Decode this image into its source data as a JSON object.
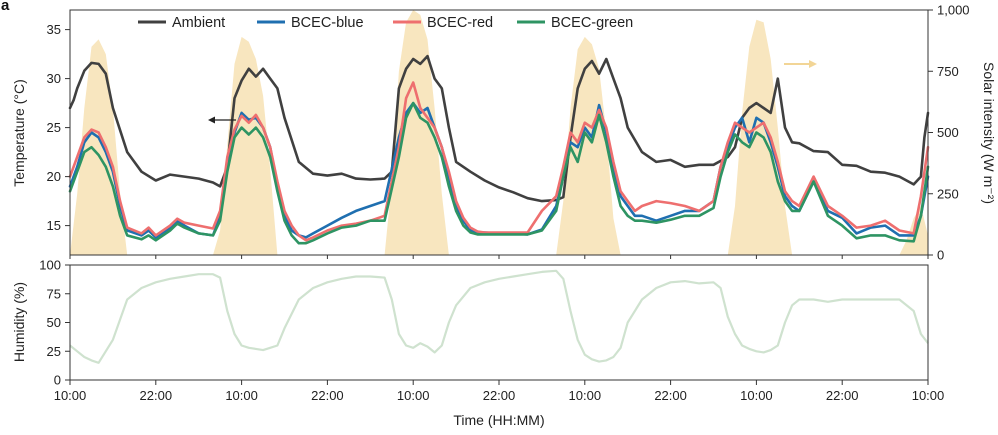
{
  "chart_data": [
    {
      "panel_label": "a",
      "type": "line",
      "xlabel": "Time (HH:MM)",
      "ylabel": "Temperature (°C)",
      "y2label": "Solar intensity (W m⁻²)",
      "x_range_hours": [
        0,
        120
      ],
      "ylim": [
        12,
        37
      ],
      "y2lim": [
        0,
        1000
      ],
      "yticks": [
        "15",
        "20",
        "25",
        "30",
        "35"
      ],
      "y2ticks": [
        "0",
        "250",
        "500",
        "750",
        "1,000"
      ],
      "legend": [
        "Ambient",
        "BCEC-blue",
        "BCEC-red",
        "BCEC-green"
      ],
      "colors": {
        "Ambient": "#404040",
        "BCEC-blue": "#1f6fb0",
        "BCEC-red": "#ee6f6f",
        "BCEC-green": "#2e9463",
        "Solar": "#f8e6bf",
        "Humidity": "#cfe2cf"
      },
      "series": [
        {
          "name": "Ambient",
          "x": [
            0,
            0.5,
            1,
            2,
            3,
            4,
            5,
            6,
            8,
            10,
            12,
            14,
            16,
            18,
            20,
            21,
            22,
            23,
            24,
            25,
            26,
            27,
            28,
            29,
            30,
            32,
            34,
            36,
            38,
            40,
            42,
            44,
            45,
            46,
            47,
            48,
            49,
            50,
            51,
            52,
            53,
            54,
            56,
            58,
            60,
            62,
            64,
            66,
            68,
            69,
            70,
            71,
            72,
            73,
            74,
            75,
            76,
            77,
            78,
            80,
            82,
            84,
            86,
            88,
            90,
            92,
            93,
            94,
            95,
            96,
            97,
            98,
            99,
            100,
            101,
            102,
            104,
            106,
            108,
            110,
            112,
            114,
            116,
            118,
            119,
            119.5,
            120
          ],
          "values": [
            27,
            27.8,
            29,
            30.8,
            31.6,
            31.5,
            30.5,
            27,
            22.5,
            20.5,
            19.6,
            20.2,
            20,
            19.8,
            19.4,
            19,
            21,
            28,
            29.8,
            31,
            30.2,
            31,
            30,
            29,
            26,
            21.5,
            20.3,
            20.1,
            20.3,
            19.8,
            19.7,
            19.8,
            20.5,
            29,
            31,
            32,
            31.5,
            32.3,
            30,
            29,
            25,
            21.5,
            20.5,
            19.6,
            18.9,
            18.4,
            17.8,
            17.5,
            17.6,
            17.9,
            24,
            29,
            31,
            31.8,
            30.5,
            32,
            30,
            28,
            25,
            22.5,
            21.5,
            21.7,
            21,
            21.2,
            21.2,
            22,
            23,
            26,
            27,
            27.5,
            27,
            26.5,
            30,
            25,
            23.5,
            23.4,
            22.6,
            22.5,
            21.2,
            21.1,
            20.5,
            20.4,
            20,
            19.2,
            20,
            24,
            26.5
          ]
        },
        {
          "name": "BCEC-blue",
          "x": [
            0,
            1,
            2,
            3,
            4,
            5,
            6,
            7,
            8,
            10,
            11,
            12,
            14,
            15,
            16,
            18,
            20,
            21,
            22,
            23,
            24,
            25,
            26,
            27,
            28,
            29,
            30,
            31,
            32,
            33,
            34,
            36,
            38,
            40,
            42,
            44,
            46,
            47,
            48,
            49,
            50,
            51,
            52,
            53,
            54,
            55,
            56,
            57,
            58,
            60,
            62,
            64,
            66,
            68,
            69,
            70,
            71,
            72,
            73,
            74,
            75,
            76,
            77,
            78,
            79,
            80,
            82,
            84,
            86,
            88,
            90,
            91,
            92,
            93,
            94,
            95,
            96,
            97,
            98,
            99,
            100,
            101,
            102,
            104,
            106,
            108,
            110,
            112,
            114,
            116,
            118,
            119,
            120
          ],
          "values": [
            19,
            21,
            23.5,
            24.5,
            24,
            22.5,
            20.5,
            17,
            14.5,
            14,
            14.5,
            13.8,
            14.8,
            15.5,
            15,
            14.2,
            14,
            16,
            21,
            24.5,
            26.5,
            25.8,
            26,
            25,
            23,
            19,
            16,
            14.5,
            14,
            13.8,
            14.2,
            15,
            15.8,
            16.5,
            17,
            17.5,
            24,
            26.5,
            27.5,
            26.5,
            27,
            25,
            23,
            20,
            17,
            15.5,
            14.5,
            14.3,
            14.3,
            14.2,
            14.2,
            14.1,
            14.6,
            17,
            20,
            23.5,
            23,
            25,
            24,
            27.3,
            24.5,
            21,
            18,
            17,
            16,
            16,
            15.5,
            16,
            16.5,
            16.5,
            17.5,
            21,
            23,
            25,
            26,
            23.5,
            26,
            25.5,
            23.5,
            21,
            18,
            17,
            16.5,
            19.5,
            16.5,
            15.8,
            14.2,
            14.8,
            15,
            14,
            14,
            16,
            20
          ]
        },
        {
          "name": "BCEC-red",
          "x": [
            0,
            1,
            2,
            3,
            4,
            5,
            6,
            7,
            8,
            10,
            11,
            12,
            14,
            15,
            16,
            18,
            20,
            21,
            22,
            23,
            24,
            25,
            26,
            27,
            28,
            29,
            30,
            31,
            32,
            33,
            34,
            36,
            38,
            40,
            42,
            44,
            46,
            47,
            48,
            49,
            50,
            51,
            52,
            53,
            54,
            55,
            56,
            57,
            58,
            60,
            62,
            64,
            66,
            68,
            69,
            70,
            71,
            72,
            73,
            74,
            75,
            76,
            77,
            78,
            79,
            80,
            82,
            84,
            86,
            88,
            90,
            91,
            92,
            93,
            94,
            95,
            96,
            97,
            98,
            99,
            100,
            101,
            102,
            104,
            106,
            108,
            110,
            112,
            114,
            116,
            118,
            119,
            120
          ],
          "values": [
            20,
            22,
            24,
            24.8,
            24.5,
            23,
            21,
            17.5,
            14.8,
            14.2,
            14.8,
            14,
            15,
            15.7,
            15.3,
            15,
            14.7,
            16.5,
            22,
            24.8,
            26.2,
            25.5,
            26.3,
            25,
            23,
            19.5,
            16.5,
            15,
            14,
            13.5,
            13.8,
            14.5,
            15,
            15.2,
            15.5,
            16,
            23,
            28,
            29.6,
            27,
            26,
            25,
            23,
            20.5,
            17.5,
            15.8,
            14.8,
            14.4,
            14.3,
            14.3,
            14.3,
            14.3,
            16.5,
            18,
            21,
            24.5,
            23.5,
            25.5,
            25,
            26.8,
            25,
            21.5,
            18.5,
            17.5,
            16.5,
            17,
            17.5,
            17.3,
            17,
            16.5,
            17.5,
            21,
            23.5,
            25.5,
            25,
            24.5,
            25,
            25.5,
            24,
            21.5,
            18.5,
            17.5,
            17,
            20,
            17,
            16,
            14.8,
            15,
            15.5,
            14.5,
            14.2,
            18,
            23
          ]
        },
        {
          "name": "BCEC-green",
          "x": [
            0,
            1,
            2,
            3,
            4,
            5,
            6,
            7,
            8,
            10,
            11,
            12,
            14,
            15,
            16,
            18,
            20,
            21,
            22,
            23,
            24,
            25,
            26,
            27,
            28,
            29,
            30,
            31,
            32,
            33,
            34,
            36,
            38,
            40,
            42,
            44,
            46,
            47,
            48,
            49,
            50,
            51,
            52,
            53,
            54,
            55,
            56,
            57,
            58,
            60,
            62,
            64,
            66,
            68,
            69,
            70,
            71,
            72,
            73,
            74,
            75,
            76,
            77,
            78,
            79,
            80,
            82,
            84,
            86,
            88,
            90,
            91,
            92,
            93,
            94,
            95,
            96,
            97,
            98,
            99,
            100,
            101,
            102,
            104,
            106,
            108,
            110,
            112,
            114,
            116,
            118,
            119,
            120
          ],
          "values": [
            18.5,
            20.5,
            22.5,
            23,
            22.2,
            21,
            19,
            16,
            14,
            13.6,
            14,
            13.5,
            14.5,
            15.2,
            14.8,
            14.2,
            14,
            15.5,
            20.5,
            24,
            25,
            24.3,
            25,
            24,
            22,
            18.5,
            15.5,
            14,
            13.2,
            13.2,
            13.5,
            14.2,
            14.8,
            15,
            15.5,
            15.5,
            22,
            26,
            27.5,
            26,
            25.5,
            24,
            22,
            19,
            16.5,
            15,
            14.3,
            14.1,
            14.1,
            14.1,
            14.1,
            14.1,
            14.5,
            16.5,
            20,
            23,
            21.5,
            24.5,
            23.5,
            26.3,
            23.5,
            20,
            17,
            16,
            15.5,
            15.5,
            15.3,
            15.6,
            16,
            16,
            16.8,
            20,
            22.5,
            24.3,
            23.5,
            23,
            24.5,
            24,
            22.5,
            19.5,
            17.5,
            16.5,
            16.5,
            19.5,
            16,
            15,
            13.7,
            14,
            14,
            13.5,
            13.4,
            16,
            21
          ]
        },
        {
          "name": "Solar intensity",
          "axis": "right",
          "x": [
            0,
            1,
            2,
            3,
            4,
            5,
            6,
            7,
            8,
            20,
            21,
            22,
            23,
            24,
            25,
            26,
            27,
            28,
            29,
            30,
            44,
            45,
            46,
            47,
            48,
            49,
            50,
            51,
            52,
            53,
            54,
            68,
            69,
            70,
            71,
            72,
            73,
            74,
            75,
            76,
            77,
            78,
            92,
            93,
            94,
            95,
            96,
            97,
            98,
            99,
            100,
            101,
            102,
            116,
            117,
            118,
            119,
            120
          ],
          "values": [
            0,
            250,
            600,
            850,
            880,
            820,
            600,
            250,
            0,
            0,
            100,
            450,
            780,
            890,
            870,
            800,
            650,
            350,
            0,
            0,
            0,
            300,
            750,
            950,
            1000,
            980,
            880,
            600,
            250,
            0,
            0,
            0,
            220,
            600,
            840,
            890,
            860,
            760,
            500,
            150,
            0,
            0,
            0,
            200,
            580,
            850,
            960,
            950,
            800,
            520,
            200,
            0,
            0,
            0,
            60,
            150,
            200,
            80
          ]
        },
        {
          "name": "Humidity",
          "ylabel": "Humidity (%)",
          "ylim": [
            0,
            100
          ],
          "yticks": [
            "0",
            "25",
            "50",
            "75",
            "100"
          ],
          "x": [
            0,
            1,
            2,
            3,
            4,
            6,
            8,
            10,
            12,
            14,
            16,
            18,
            20,
            21,
            22,
            23,
            24,
            25,
            26,
            27,
            28,
            29,
            30,
            32,
            34,
            36,
            38,
            40,
            42,
            44,
            45,
            46,
            47,
            48,
            49,
            50,
            51,
            52,
            53,
            54,
            56,
            58,
            60,
            62,
            64,
            66,
            68,
            69,
            70,
            71,
            72,
            73,
            74,
            75,
            76,
            77,
            78,
            80,
            82,
            84,
            86,
            88,
            90,
            91,
            92,
            93,
            94,
            95,
            96,
            97,
            98,
            99,
            100,
            101,
            102,
            104,
            106,
            108,
            110,
            112,
            114,
            116,
            118,
            119,
            120
          ],
          "values": [
            30,
            25,
            20,
            17,
            15,
            35,
            70,
            80,
            85,
            88,
            90,
            92,
            92,
            89,
            60,
            40,
            30,
            28,
            27,
            26,
            28,
            30,
            45,
            70,
            80,
            85,
            88,
            90,
            90,
            89,
            70,
            40,
            30,
            28,
            32,
            29,
            24,
            30,
            50,
            65,
            80,
            85,
            88,
            90,
            92,
            94,
            95,
            88,
            60,
            35,
            22,
            18,
            16,
            17,
            20,
            28,
            50,
            70,
            80,
            85,
            86,
            84,
            85,
            80,
            55,
            40,
            30,
            27,
            25,
            24,
            26,
            30,
            50,
            65,
            70,
            70,
            68,
            70,
            70,
            70,
            70,
            70,
            60,
            40,
            32
          ]
        }
      ],
      "x_tick_labels": [
        "10:00",
        "22:00",
        "10:00",
        "22:00",
        "10:00",
        "22:00",
        "10:00",
        "22:00",
        "10:00",
        "22:00",
        "10:00"
      ]
    }
  ]
}
